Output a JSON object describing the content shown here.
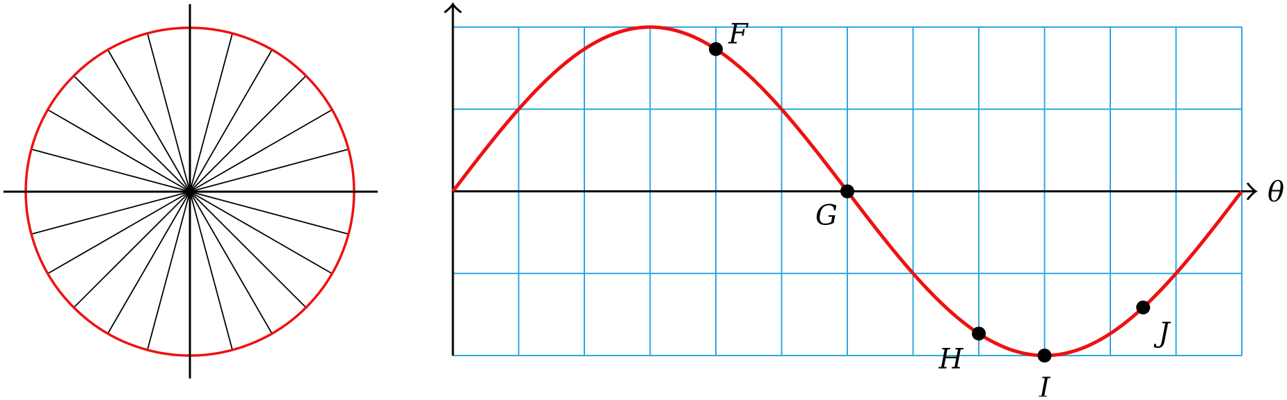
{
  "colors": {
    "axis": "#000000",
    "circle": "#ee1111",
    "spoke": "#000000",
    "grid": "#2aa8e0",
    "curve": "#ee1111",
    "point": "#000000"
  },
  "unit_circle": {
    "spoke_count": 24
  },
  "graph": {
    "axis_label": "θ",
    "function": "sine",
    "x_range": [
      0,
      12
    ],
    "y_range": [
      -2,
      2
    ],
    "grid_columns": 12,
    "grid_rows": 4,
    "points": [
      {
        "label": "F",
        "t": 4
      },
      {
        "label": "G",
        "t": 6
      },
      {
        "label": "H",
        "t": 8
      },
      {
        "label": "I",
        "t": 9
      },
      {
        "label": "J",
        "t": 10.5
      }
    ]
  }
}
